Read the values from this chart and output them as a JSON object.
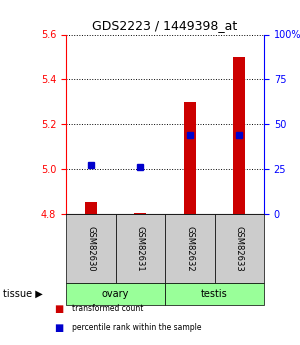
{
  "title": "GDS2223 / 1449398_at",
  "samples": [
    "GSM82630",
    "GSM82631",
    "GSM82632",
    "GSM82633"
  ],
  "transformed_counts": [
    4.855,
    4.803,
    5.3,
    5.5
  ],
  "baseline": 4.8,
  "percentile_ranks_pct": [
    27,
    26,
    44,
    44
  ],
  "ylim_left": [
    4.8,
    5.6
  ],
  "ylim_right": [
    0,
    100
  ],
  "yticks_left": [
    4.8,
    5.0,
    5.2,
    5.4,
    5.6
  ],
  "yticks_right": [
    0,
    25,
    50,
    75,
    100
  ],
  "ytick_labels_right": [
    "0",
    "25",
    "50",
    "75",
    "100%"
  ],
  "tissue_groups": [
    {
      "label": "ovary",
      "indices": [
        0,
        1
      ]
    },
    {
      "label": "testis",
      "indices": [
        2,
        3
      ]
    }
  ],
  "bar_color": "#cc0000",
  "dot_color": "#0000cc",
  "tissue_color": "#99ff99",
  "sample_box_color": "#cccccc",
  "legend_items": [
    {
      "label": "transformed count",
      "color": "#cc0000"
    },
    {
      "label": "percentile rank within the sample",
      "color": "#0000cc"
    }
  ]
}
